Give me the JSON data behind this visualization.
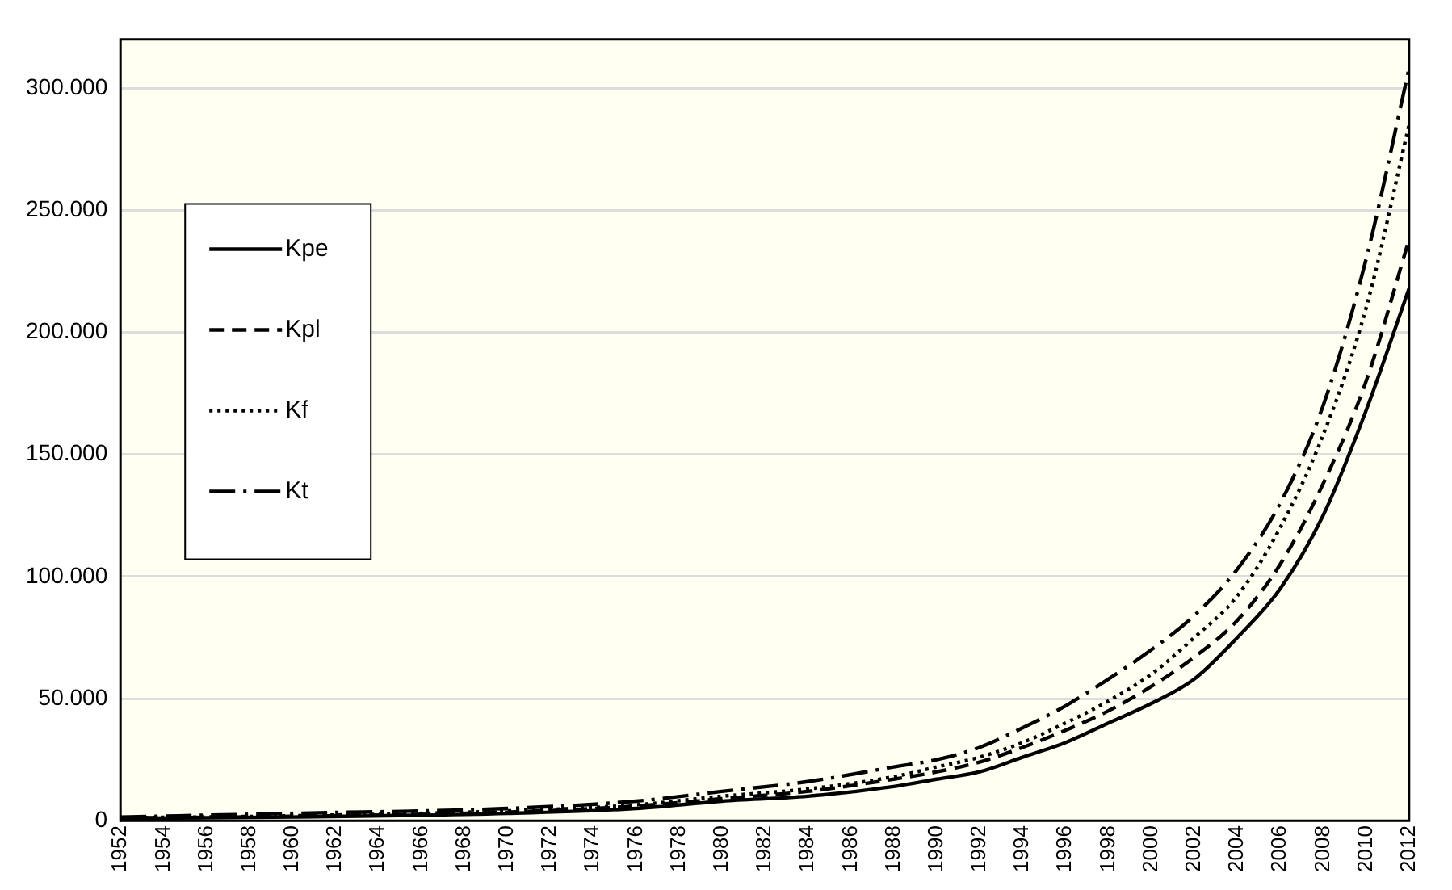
{
  "chart_data": {
    "type": "line",
    "xlim": [
      1952,
      2012
    ],
    "xticks": [
      1952,
      1954,
      1956,
      1958,
      1960,
      1962,
      1964,
      1966,
      1968,
      1970,
      1972,
      1974,
      1976,
      1978,
      1980,
      1982,
      1984,
      1986,
      1988,
      1990,
      1992,
      1994,
      1996,
      1998,
      2000,
      2002,
      2004,
      2006,
      2008,
      2010,
      2012
    ],
    "ylim": [
      0,
      320000
    ],
    "yticks": [
      {
        "value": 0,
        "label": "0"
      },
      {
        "value": 50000,
        "label": "50.000"
      },
      {
        "value": 100000,
        "label": "100.000"
      },
      {
        "value": 150000,
        "label": "150.000"
      },
      {
        "value": 200000,
        "label": "200.000"
      },
      {
        "value": 250000,
        "label": "250.000"
      },
      {
        "value": 300000,
        "label": "300.000"
      }
    ],
    "grid": "y",
    "legend": "left",
    "marker": "none",
    "series": [
      {
        "name": "Kpe",
        "color": "#000000",
        "line_style": "solid",
        "x": [
          1952,
          1960,
          1970,
          1976,
          1980,
          1984,
          1988,
          1990,
          1992,
          1994,
          1996,
          1998,
          2000,
          2002,
          2004,
          2006,
          2008,
          2010,
          2012
        ],
        "values": [
          1000,
          1500,
          3000,
          5000,
          8000,
          10000,
          14000,
          17000,
          20000,
          26000,
          32000,
          40000,
          48000,
          58000,
          75000,
          95000,
          125000,
          168000,
          218000
        ]
      },
      {
        "name": "Kpl",
        "color": "#000000",
        "line_style": "dashed",
        "x": [
          1952,
          1960,
          1970,
          1976,
          1980,
          1984,
          1988,
          1990,
          1992,
          1994,
          1996,
          1998,
          2000,
          2002,
          2004,
          2006,
          2008,
          2010,
          2012
        ],
        "values": [
          1100,
          1800,
          3500,
          6000,
          9000,
          12000,
          17000,
          20000,
          24000,
          30000,
          37000,
          45000,
          55000,
          67000,
          82000,
          105000,
          138000,
          180000,
          238000
        ]
      },
      {
        "name": "Kf",
        "color": "#000000",
        "line_style": "dotted",
        "x": [
          1952,
          1960,
          1970,
          1976,
          1980,
          1984,
          1988,
          1990,
          1992,
          1994,
          1996,
          1998,
          2000,
          2002,
          2004,
          2006,
          2008,
          2010,
          2012
        ],
        "values": [
          1200,
          2000,
          4000,
          6500,
          10000,
          13000,
          18000,
          22000,
          26000,
          32000,
          40000,
          49000,
          60000,
          75000,
          92000,
          120000,
          158000,
          210000,
          285000
        ]
      },
      {
        "name": "Kt",
        "color": "#000000",
        "line_style": "dashdot",
        "x": [
          1952,
          1960,
          1970,
          1976,
          1980,
          1984,
          1988,
          1990,
          1992,
          1994,
          1996,
          1998,
          2000,
          2002,
          2004,
          2006,
          2008,
          2010,
          2012
        ],
        "values": [
          1500,
          3000,
          5000,
          8000,
          12000,
          16000,
          22000,
          25000,
          30000,
          38000,
          47000,
          58000,
          70000,
          84000,
          103000,
          130000,
          170000,
          230000,
          308000
        ]
      }
    ]
  }
}
